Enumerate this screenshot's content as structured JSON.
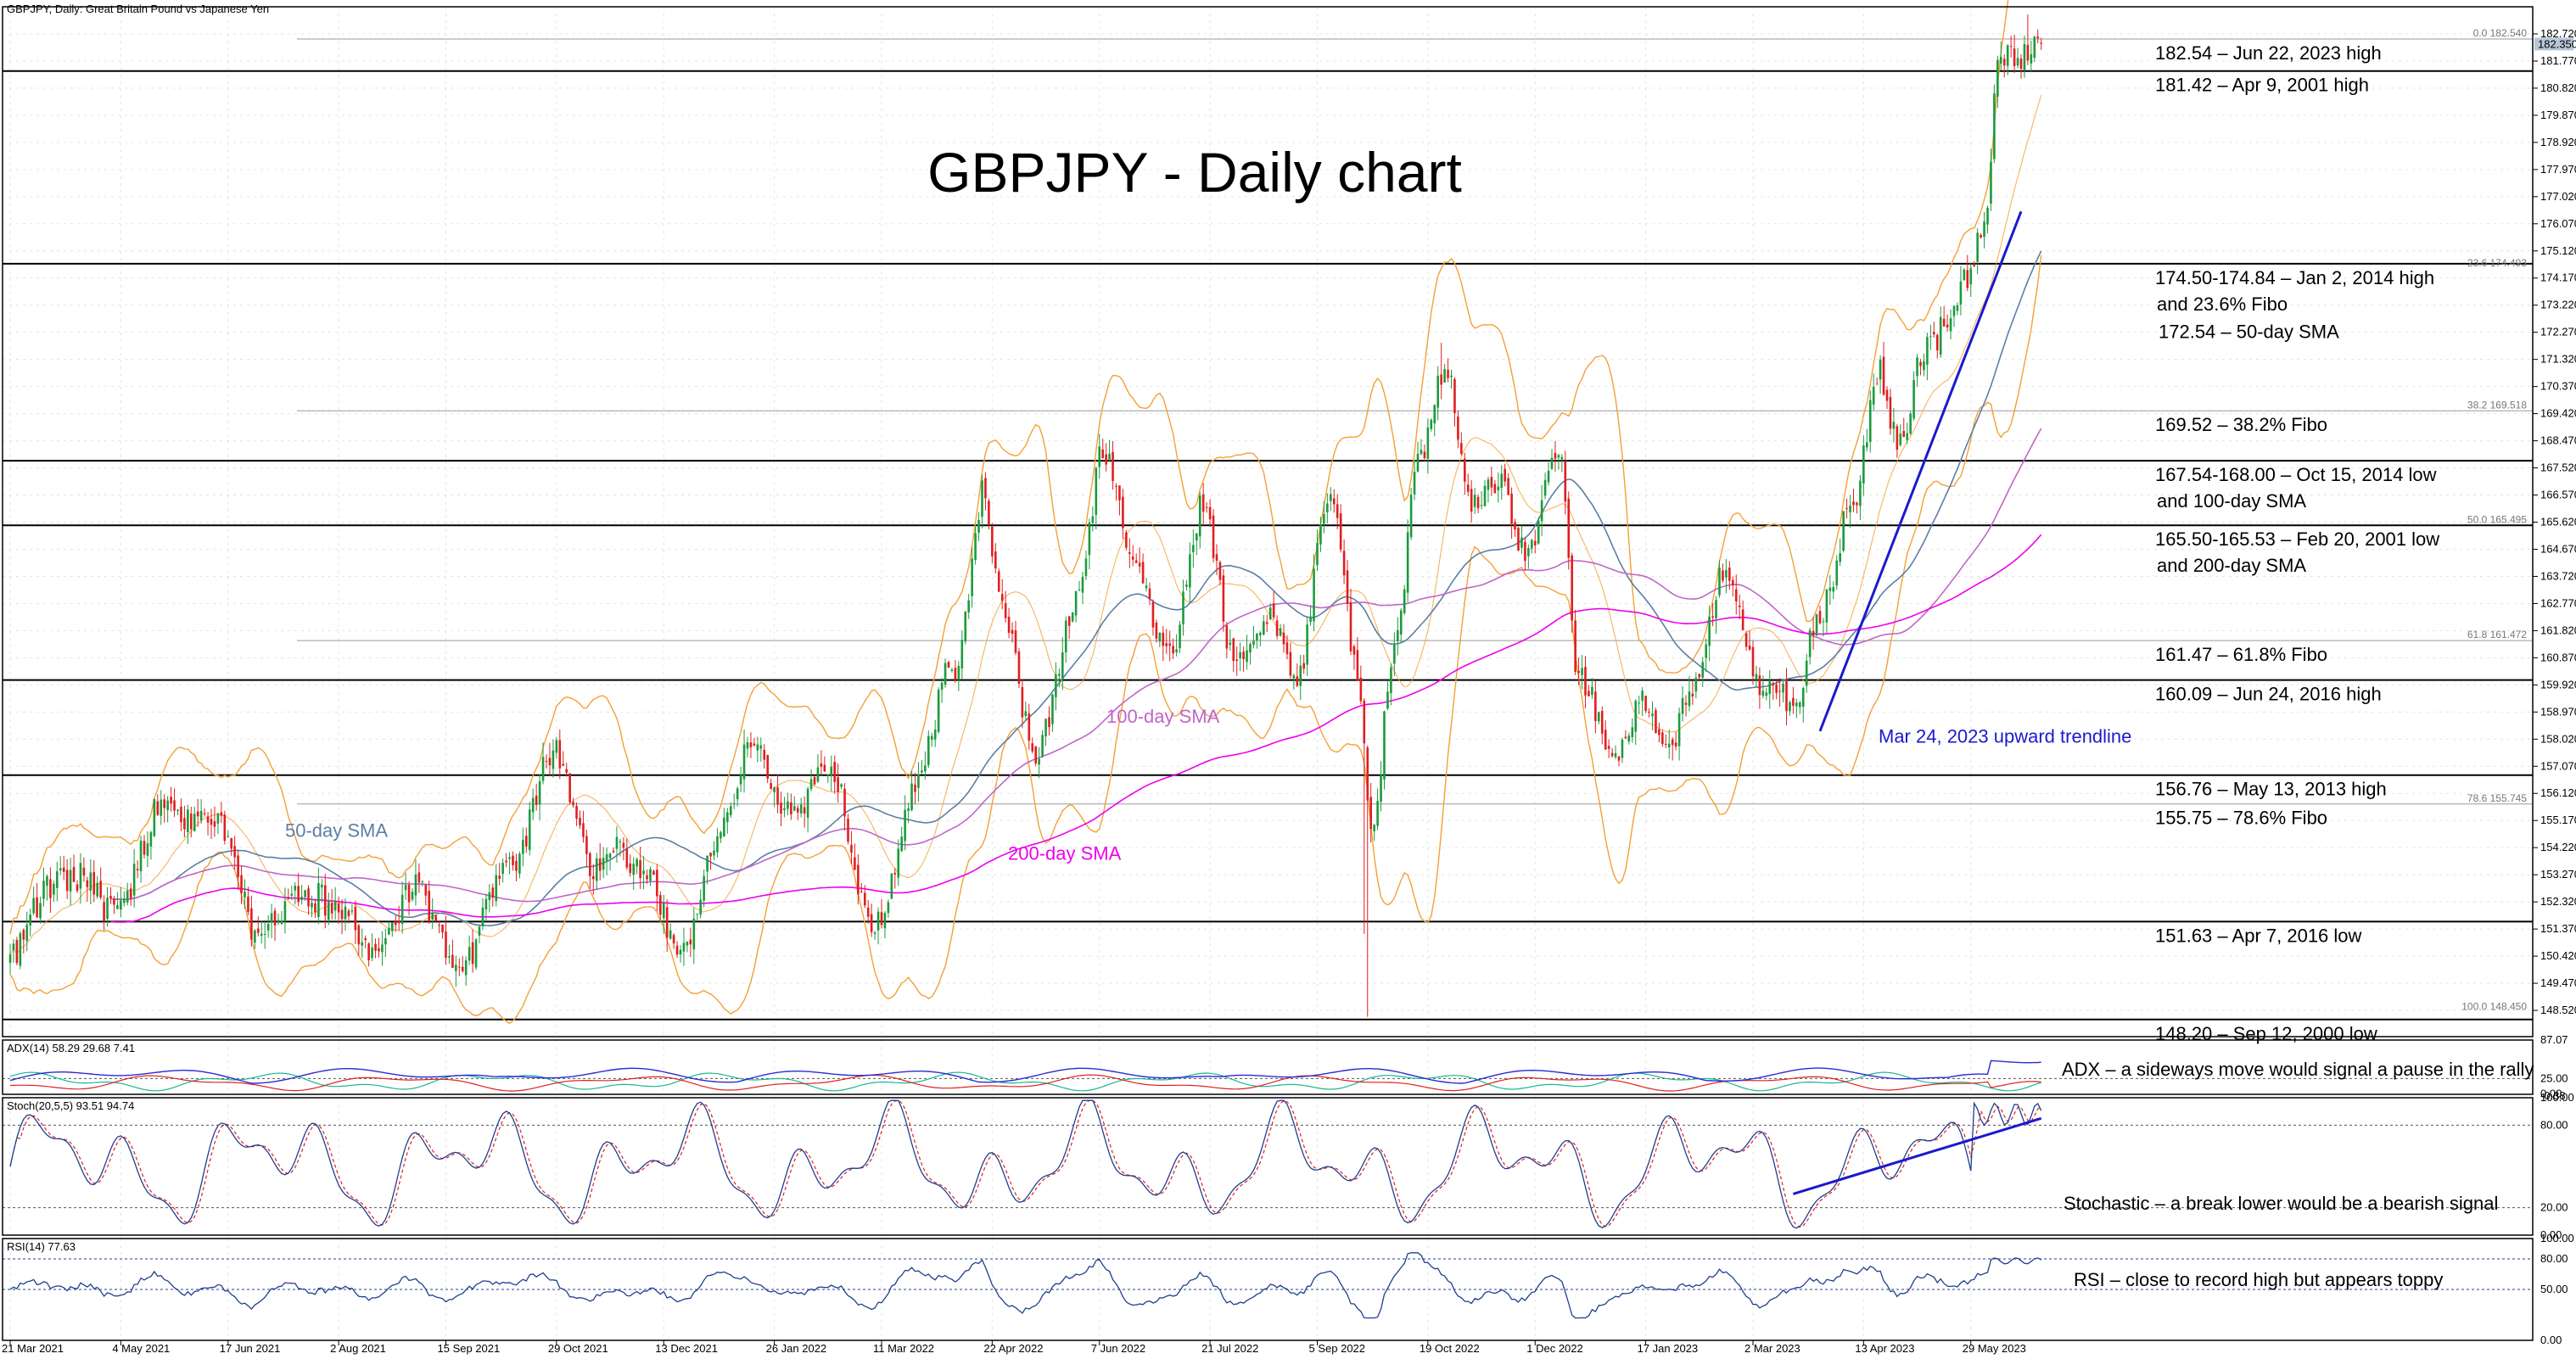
{
  "chart_data": {
    "type": "candlestick",
    "header": "GBPJPY, Daily:  Great Britain Pound vs Japanese Yen",
    "title": "GBPJPY - Daily chart",
    "ylim": [
      147.6,
      183.67
    ],
    "y_ticks": [
      "182.720",
      "181.770",
      "180.820",
      "179.870",
      "178.920",
      "177.970",
      "177.020",
      "176.070",
      "175.120",
      "174.170",
      "173.220",
      "172.270",
      "171.320",
      "170.370",
      "169.420",
      "168.470",
      "167.520",
      "166.570",
      "165.620",
      "164.670",
      "163.720",
      "162.770",
      "161.820",
      "160.870",
      "159.920",
      "158.970",
      "158.020",
      "157.070",
      "156.120",
      "155.170",
      "154.220",
      "153.270",
      "152.320",
      "151.370",
      "150.420",
      "149.470",
      "148.520"
    ],
    "x_ticks": [
      "21 Mar 2021",
      "4 May 2021",
      "17 Jun 2021",
      "2 Aug 2021",
      "15 Sep 2021",
      "29 Oct 2021",
      "13 Dec 2021",
      "26 Jan 2022",
      "11 Mar 2022",
      "22 Apr 2022",
      "7 Jun 2022",
      "21 Jul 2022",
      "5 Sep 2022",
      "19 Oct 2022",
      "1 Dec 2022",
      "17 Jan 2023",
      "2 Mar 2023",
      "13 Apr 2023",
      "29 May 2023"
    ],
    "anchors": [
      {
        "i": 0,
        "v": 150.3
      },
      {
        "i": 15,
        "v": 153.5
      },
      {
        "i": 30,
        "v": 152.0
      },
      {
        "i": 48,
        "v": 155.9
      },
      {
        "i": 62,
        "v": 154.8
      },
      {
        "i": 75,
        "v": 151.3
      },
      {
        "i": 92,
        "v": 152.8
      },
      {
        "i": 108,
        "v": 150.4
      },
      {
        "i": 120,
        "v": 152.5
      },
      {
        "i": 135,
        "v": 150.1
      },
      {
        "i": 150,
        "v": 154.1
      },
      {
        "i": 162,
        "v": 157.3
      },
      {
        "i": 175,
        "v": 153.6
      },
      {
        "i": 190,
        "v": 153.9
      },
      {
        "i": 200,
        "v": 149.9
      },
      {
        "i": 210,
        "v": 154.4
      },
      {
        "i": 222,
        "v": 157.6
      },
      {
        "i": 235,
        "v": 155.4
      },
      {
        "i": 245,
        "v": 157.2
      },
      {
        "i": 258,
        "v": 151.1
      },
      {
        "i": 270,
        "v": 156.6
      },
      {
        "i": 282,
        "v": 160.6
      },
      {
        "i": 290,
        "v": 166.8
      },
      {
        "i": 296,
        "v": 162.1
      },
      {
        "i": 306,
        "v": 157.8
      },
      {
        "i": 318,
        "v": 162.4
      },
      {
        "i": 326,
        "v": 168.3
      },
      {
        "i": 336,
        "v": 163.4
      },
      {
        "i": 346,
        "v": 161.1
      },
      {
        "i": 356,
        "v": 165.8
      },
      {
        "i": 365,
        "v": 161.3
      },
      {
        "i": 375,
        "v": 162.1
      },
      {
        "i": 384,
        "v": 160.6
      },
      {
        "i": 394,
        "v": 166.4
      },
      {
        "i": 402,
        "v": 160.4
      },
      {
        "i": 406,
        "v": 155.2
      },
      {
        "i": 414,
        "v": 161.6
      },
      {
        "i": 420,
        "v": 168.0
      },
      {
        "i": 428,
        "v": 171.2
      },
      {
        "i": 436,
        "v": 166.1
      },
      {
        "i": 444,
        "v": 167.6
      },
      {
        "i": 452,
        "v": 164.1
      },
      {
        "i": 462,
        "v": 168.4
      },
      {
        "i": 468,
        "v": 160.1
      },
      {
        "i": 478,
        "v": 157.2
      },
      {
        "i": 486,
        "v": 159.6
      },
      {
        "i": 494,
        "v": 157.4
      },
      {
        "i": 502,
        "v": 160.2
      },
      {
        "i": 512,
        "v": 163.6
      },
      {
        "i": 522,
        "v": 160.3
      },
      {
        "i": 532,
        "v": 158.9
      },
      {
        "i": 540,
        "v": 162.9
      },
      {
        "i": 550,
        "v": 166.1
      },
      {
        "i": 558,
        "v": 171.1
      },
      {
        "i": 564,
        "v": 168.3
      },
      {
        "i": 572,
        "v": 171.6
      },
      {
        "i": 580,
        "v": 173.6
      },
      {
        "i": 588,
        "v": 175.1
      },
      {
        "i": 594,
        "v": 181.7
      },
      {
        "i": 598,
        "v": 182.3
      }
    ],
    "moving_averages": [
      {
        "name": "50-day SMA",
        "label": "50-day SMA",
        "period": 50,
        "color": "#5b7fa6"
      },
      {
        "name": "100-day SMA",
        "label": "100-day SMA",
        "period": 100,
        "color": "#c066c8"
      },
      {
        "name": "200-day SMA",
        "label": "200-day SMA",
        "period": 200,
        "color": "#ee00ee"
      }
    ],
    "bollinger": {
      "period": 20,
      "color": "#f5a035"
    },
    "levels": [
      {
        "value": 182.54,
        "text": "182.54 – Jun 22, 2023 high",
        "thin": true
      },
      {
        "value": 181.42,
        "text": "181.42 – Apr 9, 2001 high",
        "thin": false
      },
      {
        "value": 174.67,
        "text": "174.50-174.84 – Jan 2, 2014 high",
        "text2": "and 23.6% Fibo",
        "thin": false
      },
      {
        "value": 169.52,
        "text": "169.52 – 38.2% Fibo",
        "thin": true
      },
      {
        "value": 167.77,
        "text": "167.54-168.00 – Oct 15, 2014 low",
        "text2": "and 100-day SMA",
        "thin": false
      },
      {
        "value": 165.51,
        "text": "165.50-165.53 – Feb 20, 2001 low",
        "text2": "and 200-day SMA",
        "thin": false
      },
      {
        "value": 161.47,
        "text": "161.47 – 61.8% Fibo",
        "thin": true
      },
      {
        "value": 160.09,
        "text": "160.09 – Jun 24, 2016 high",
        "thin": false
      },
      {
        "value": 156.76,
        "text": "156.76 – May 13, 2013 high",
        "thin": false
      },
      {
        "value": 155.75,
        "text": "155.75 – 78.6% Fibo",
        "thin": true
      },
      {
        "value": 151.63,
        "text": "151.63 – Apr 7, 2016 low",
        "thin": false
      },
      {
        "value": 148.2,
        "text": "148.20 – Sep 12, 2000 low",
        "thin": false
      }
    ],
    "sma50_note": {
      "text": "172.54 – 50-day SMA",
      "value": 172.54,
      "color": "#4a78a8"
    },
    "fibo_labels": [
      {
        "text": "0.0 182.540",
        "value": 182.54
      },
      {
        "text": "23.6 174.493",
        "value": 174.493
      },
      {
        "text": "38.2 169.518",
        "value": 169.518
      },
      {
        "text": "50.0 165.495",
        "value": 165.495
      },
      {
        "text": "61.8 161.472",
        "value": 161.472
      },
      {
        "text": "78.6 155.745",
        "value": 155.745
      },
      {
        "text": "100.0 148.450",
        "value": 148.45
      }
    ],
    "current_price_label": "182.350",
    "trendline": {
      "text": "Mar 24, 2023 upward trendline",
      "color": "#1a1acc",
      "start": {
        "i": 540,
        "v": 158.3
      },
      "end": {
        "i": 600,
        "v": 176.5
      }
    },
    "adx": {
      "header": "ADX(14) 58.29 29.68 7.41",
      "ticks": [
        "87.07",
        "25.00",
        "0.00",
        "-0.38"
      ],
      "ylim": [
        -0.38,
        87.07
      ],
      "level": 25,
      "note": "ADX – a sideways move would signal a pause in the rally",
      "colors": {
        "adx": "#2b2bd4",
        "plus_di": "#17b890",
        "minus_di": "#e02020"
      }
    },
    "stoch": {
      "header": "Stoch(20,5,5) 93.51 94.74",
      "ticks": [
        "100.00",
        "80.00",
        "20.00",
        "0.00"
      ],
      "ylim": [
        0,
        100
      ],
      "levels": [
        80,
        20
      ],
      "note": "Stochastic – a break lower would be a bearish signal",
      "colors": {
        "k": "#1e3f8f",
        "d": "#e02020"
      },
      "trend": {
        "start": {
          "i": 532,
          "v": 30
        },
        "end": {
          "i": 606,
          "v": 85
        },
        "color": "#1a1acc"
      }
    },
    "rsi": {
      "header": "RSI(14) 77.63",
      "ticks": [
        "100.00",
        "80.00",
        "50.00",
        "0.00"
      ],
      "ylim": [
        0,
        100
      ],
      "levels": [
        80,
        50
      ],
      "note": "RSI – close to record high but appears toppy",
      "color": "#1e3f8f"
    }
  }
}
